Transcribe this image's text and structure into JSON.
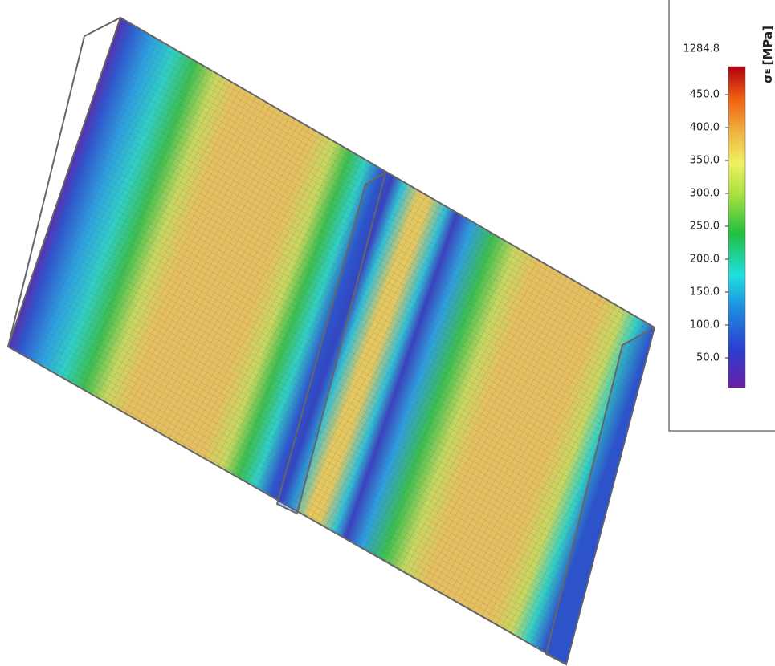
{
  "legend": {
    "max_label": "1284.8",
    "title_symbol": "σ",
    "title_subscript": "E",
    "title_unit": "[MPa]",
    "ticks": [
      "450.0",
      "400.0",
      "350.0",
      "300.0",
      "250.0",
      "200.0",
      "150.0",
      "100.0",
      "50.0"
    ]
  }
}
